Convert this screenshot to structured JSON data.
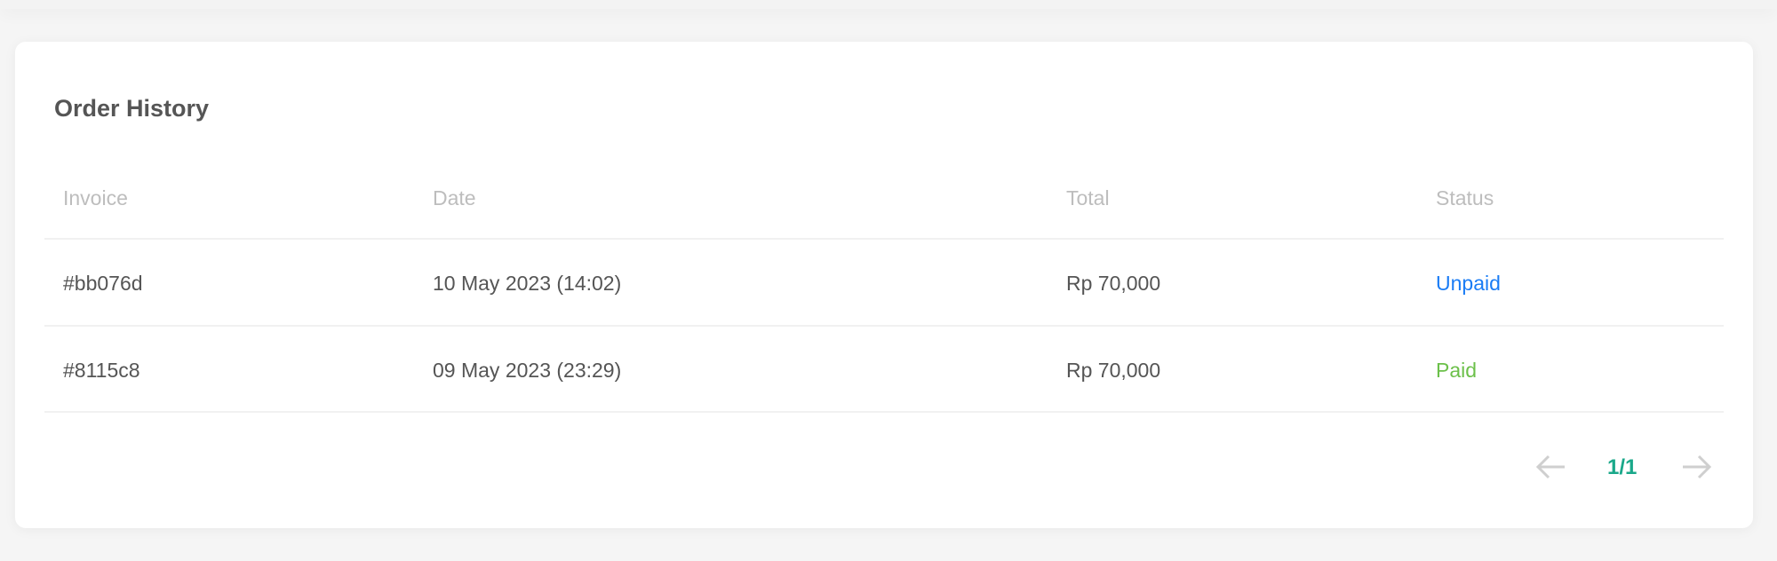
{
  "card": {
    "title": "Order History"
  },
  "table": {
    "headers": [
      "Invoice",
      "Date",
      "Total",
      "Status"
    ],
    "rows": [
      {
        "invoice": "#bb076d",
        "date": "10 May 2023 (14:02)",
        "total": "Rp 70,000",
        "status": "Unpaid",
        "status_color": "#1a7cf5"
      },
      {
        "invoice": "#8115c8",
        "date": "09 May 2023 (23:29)",
        "total": "Rp 70,000",
        "status": "Paid",
        "status_color": "#6cc04a"
      }
    ]
  },
  "pagination": {
    "page": "1/1",
    "accent": "#1aa88a",
    "prev_icon": "arrow-left-icon",
    "next_icon": "arrow-right-icon"
  }
}
